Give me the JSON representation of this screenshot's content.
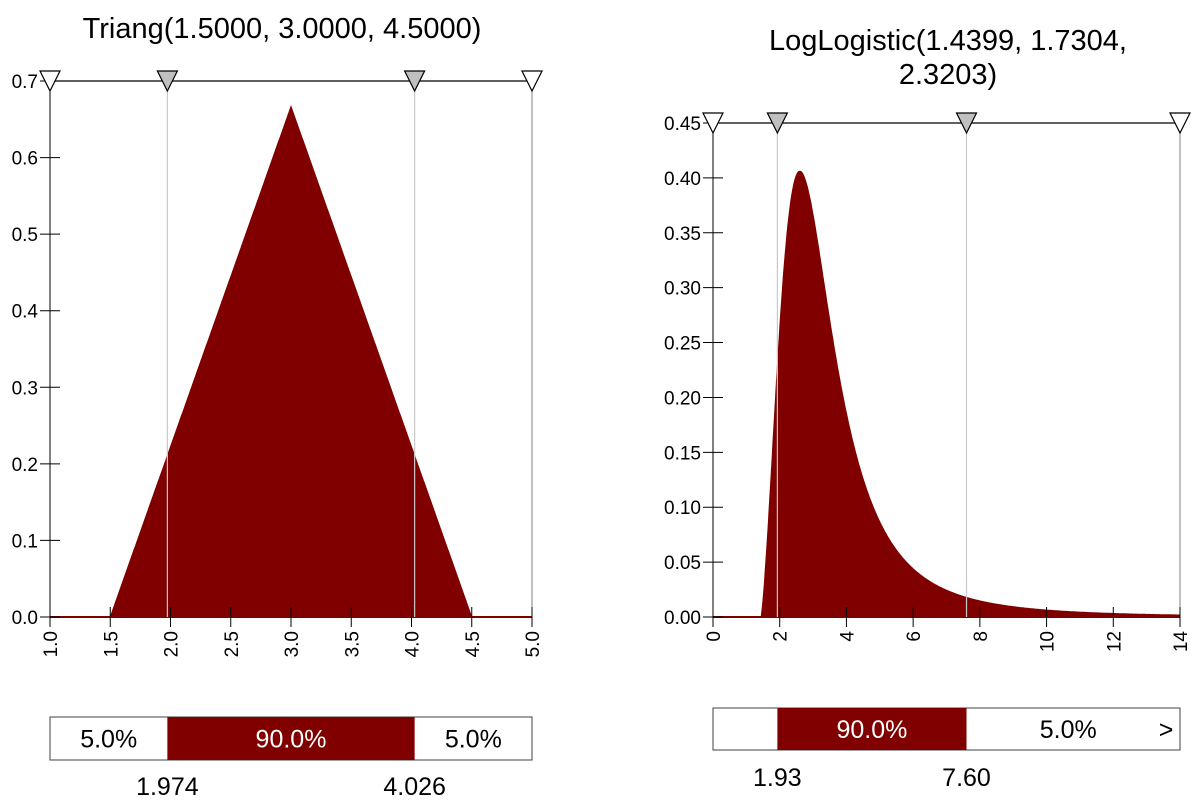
{
  "colors": {
    "fill": "#800000",
    "gridline": "#c8c8c8",
    "axis": "#000000",
    "marker_gray": "#c0c0c0",
    "background": "#ffffff"
  },
  "chart_data": [
    {
      "type": "area",
      "title": "Triang(1.5000, 3.0000, 4.5000)",
      "distribution": "triangular",
      "params": {
        "min": 1.5,
        "mode": 3.0,
        "max": 4.5
      },
      "xlim": [
        1.0,
        5.0
      ],
      "ylim": [
        0,
        0.7
      ],
      "x_ticks": [
        "1.0",
        "1.5",
        "2.0",
        "2.5",
        "3.0",
        "3.5",
        "4.0",
        "4.5",
        "5.0"
      ],
      "y_ticks": [
        "0.0",
        "0.1",
        "0.2",
        "0.3",
        "0.4",
        "0.5",
        "0.6",
        "0.7"
      ],
      "series": [
        {
          "x": [
            1.0,
            1.5,
            3.0,
            4.5,
            5.0
          ],
          "y": [
            0,
            0,
            0.667,
            0,
            0
          ]
        }
      ],
      "marker_values": [
        1.974,
        4.026
      ],
      "delimiter_bar": {
        "segments": [
          "5.0%",
          "90.0%",
          "5.0%"
        ],
        "labels": [
          "1.974",
          "4.026"
        ]
      }
    },
    {
      "type": "area",
      "title": "LogLogistic(1.4399, 1.7304,\n2.3203)",
      "distribution": "loglogistic",
      "params": {
        "gamma": 1.4399,
        "beta": 1.7304,
        "alpha": 2.3203
      },
      "xlim": [
        0,
        14
      ],
      "ylim": [
        0,
        0.45
      ],
      "x_ticks": [
        "0",
        "2",
        "4",
        "6",
        "8",
        "10",
        "12",
        "14"
      ],
      "y_ticks": [
        "0.00",
        "0.05",
        "0.10",
        "0.15",
        "0.20",
        "0.25",
        "0.30",
        "0.35",
        "0.40",
        "0.45"
      ],
      "series": [
        {
          "x": [
            1.44,
            2.0,
            2.6,
            3.0,
            4.0,
            5.0,
            6.0,
            7.6,
            10.0,
            14.0
          ],
          "y": [
            0,
            0.26,
            0.405,
            0.38,
            0.22,
            0.115,
            0.062,
            0.026,
            0.009,
            0.003
          ]
        }
      ],
      "marker_values": [
        1.93,
        7.6
      ],
      "delimiter_bar": {
        "segments": [
          "",
          "90.0%",
          "5.0%"
        ],
        "arrow": ">",
        "labels": [
          "1.93",
          "7.60"
        ]
      }
    }
  ]
}
